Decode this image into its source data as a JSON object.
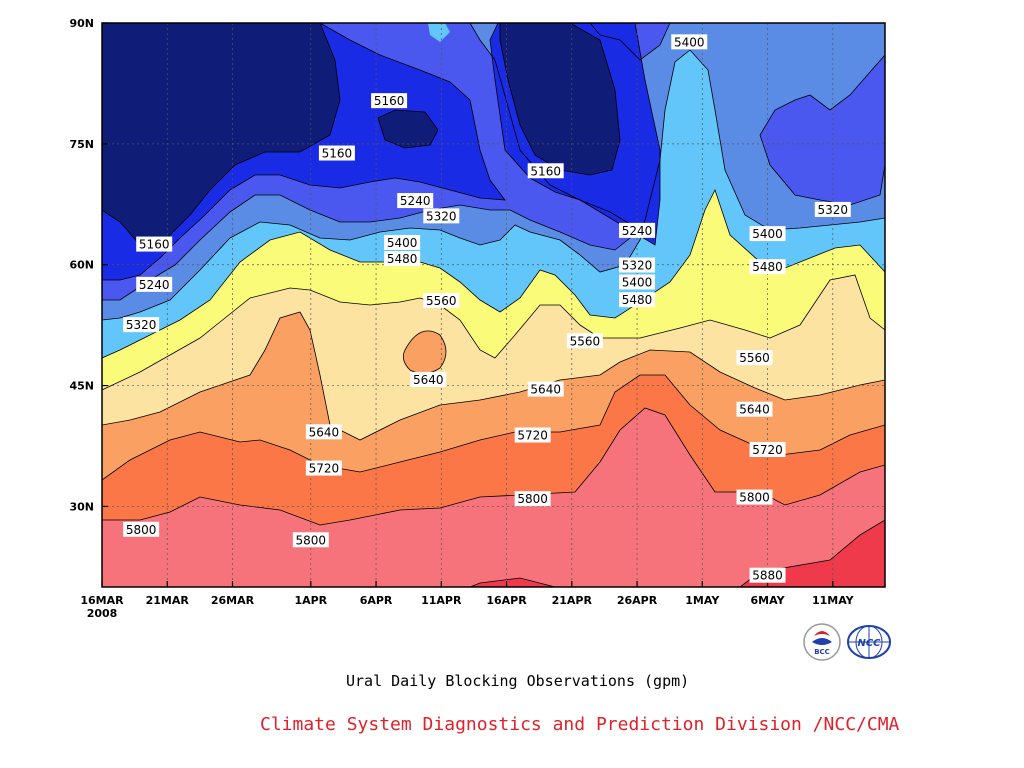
{
  "chart_data": {
    "type": "heatmap",
    "title": "Ural Daily Blocking Observations (gpm)",
    "x_ticks": [
      "16MAR",
      "21MAR",
      "26MAR",
      "1APR",
      "6APR",
      "11APR",
      "16APR",
      "21APR",
      "26APR",
      "1MAY",
      "6MAY",
      "11MAY"
    ],
    "x_start_year": "2008",
    "y_ticks": [
      "90N",
      "75N",
      "60N",
      "45N",
      "30N"
    ],
    "xlim": [
      "2008-03-16",
      "2008-05-15"
    ],
    "ylim": [
      20,
      90
    ],
    "grid": true,
    "contour_levels": [
      5160,
      5240,
      5320,
      5400,
      5480,
      5560,
      5640,
      5720,
      5800,
      5880
    ],
    "fill_colors": [
      "#0f1c78",
      "#1a2be6",
      "#4b58ef",
      "#5a8ce6",
      "#62c6fa",
      "#fbfb7a",
      "#fde3a1",
      "#fba063",
      "#fb7747",
      "#f6737b",
      "#ef3a4c"
    ],
    "contour_labels": [
      {
        "value": "5160",
        "date": "2008-03-20",
        "lat": 62.5
      },
      {
        "value": "5240",
        "date": "2008-03-20",
        "lat": 57.5
      },
      {
        "value": "5320",
        "date": "2008-03-19",
        "lat": 52.5
      },
      {
        "value": "5800",
        "date": "2008-03-19",
        "lat": 27.1
      },
      {
        "value": "5160",
        "date": "2008-04-03",
        "lat": 73.8
      },
      {
        "value": "5160",
        "date": "2008-04-07",
        "lat": 80.3
      },
      {
        "value": "5240",
        "date": "2008-04-09",
        "lat": 67.9
      },
      {
        "value": "5320",
        "date": "2008-04-11",
        "lat": 66.0
      },
      {
        "value": "5400",
        "date": "2008-04-08",
        "lat": 62.7
      },
      {
        "value": "5480",
        "date": "2008-04-08",
        "lat": 60.7
      },
      {
        "value": "5560",
        "date": "2008-04-11",
        "lat": 55.5
      },
      {
        "value": "5640",
        "date": "2008-04-10",
        "lat": 45.7
      },
      {
        "value": "5640",
        "date": "2008-04-02",
        "lat": 39.2
      },
      {
        "value": "5720",
        "date": "2008-04-02",
        "lat": 34.7
      },
      {
        "value": "5800",
        "date": "2008-04-01",
        "lat": 25.8
      },
      {
        "value": "5160",
        "date": "2008-04-19",
        "lat": 71.6
      },
      {
        "value": "5640",
        "date": "2008-04-19",
        "lat": 44.5
      },
      {
        "value": "5720",
        "date": "2008-04-18",
        "lat": 38.8
      },
      {
        "value": "5800",
        "date": "2008-04-18",
        "lat": 30.9
      },
      {
        "value": "5560",
        "date": "2008-04-22",
        "lat": 50.5
      },
      {
        "value": "5240",
        "date": "2008-04-26",
        "lat": 64.2
      },
      {
        "value": "5320",
        "date": "2008-04-26",
        "lat": 59.9
      },
      {
        "value": "5400",
        "date": "2008-04-26",
        "lat": 57.8
      },
      {
        "value": "5480",
        "date": "2008-04-26",
        "lat": 55.6
      },
      {
        "value": "5400",
        "date": "2008-04-30",
        "lat": 87.6
      },
      {
        "value": "5320",
        "date": "2008-05-11",
        "lat": 66.8
      },
      {
        "value": "5400",
        "date": "2008-05-06",
        "lat": 63.8
      },
      {
        "value": "5480",
        "date": "2008-05-06",
        "lat": 59.7
      },
      {
        "value": "5560",
        "date": "2008-05-05",
        "lat": 48.4
      },
      {
        "value": "5640",
        "date": "2008-05-05",
        "lat": 42.0
      },
      {
        "value": "5720",
        "date": "2008-05-06",
        "lat": 37.0
      },
      {
        "value": "5800",
        "date": "2008-05-05",
        "lat": 31.1
      },
      {
        "value": "5880",
        "date": "2008-05-06",
        "lat": 21.4
      }
    ]
  },
  "credit": "Climate System Diagnostics and Prediction Division /NCC/CMA",
  "logos": {
    "bcc": "BCC",
    "ncc": "NCC"
  }
}
